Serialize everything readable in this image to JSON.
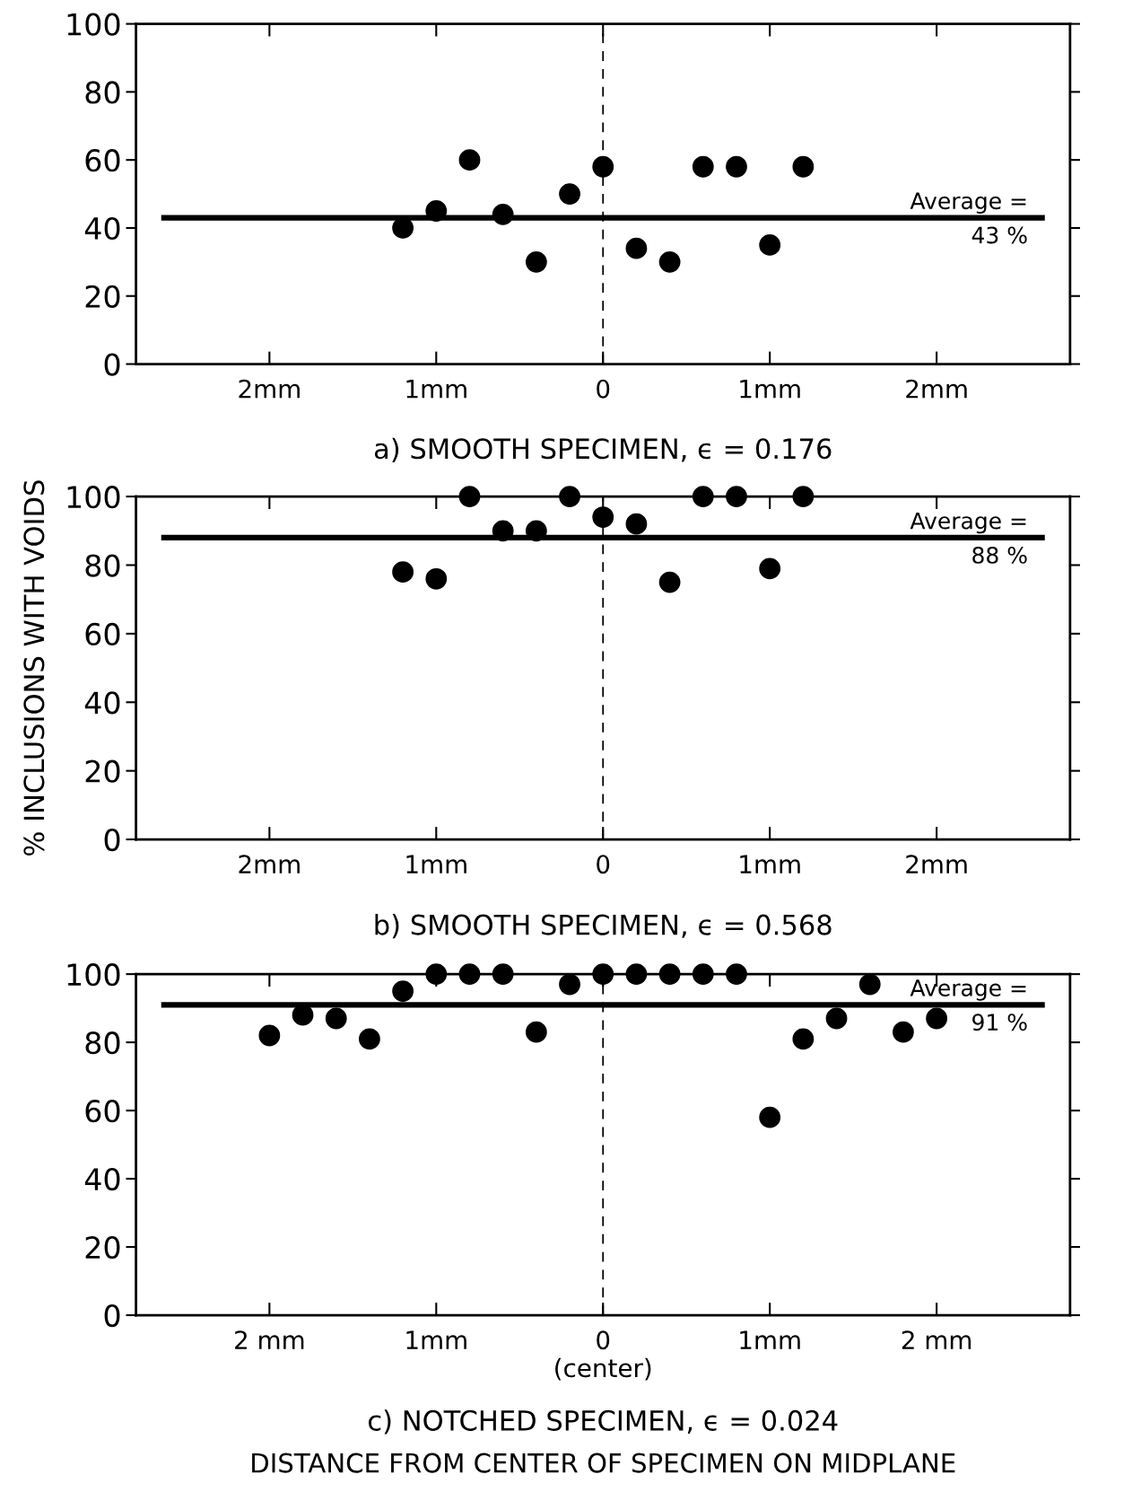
{
  "chart_data": [
    {
      "type": "scatter",
      "title": "a) SMOOTH SPECIMEN, ϵ = 0.176",
      "x": [
        -1.2,
        -1.0,
        -0.8,
        -0.6,
        -0.4,
        -0.2,
        0,
        0.2,
        0.4,
        0.6,
        0.8,
        1.0,
        1.2
      ],
      "series": [
        {
          "color": "#000000",
          "values": [
            40,
            45,
            60,
            44,
            30,
            50,
            58,
            34,
            30,
            58,
            58,
            35,
            58
          ]
        }
      ],
      "xlim": [
        -2.8,
        2.8
      ],
      "xticks": [
        {
          "value": -2,
          "label": "2mm"
        },
        {
          "value": -1,
          "label": "1mm"
        },
        0,
        {
          "value": 1,
          "label": "1mm"
        },
        {
          "value": 2,
          "label": "2mm"
        }
      ],
      "ylim": [
        0,
        100
      ],
      "yticks": [
        0,
        20,
        40,
        60,
        80,
        100
      ],
      "marker": "circle",
      "grid": false,
      "legend": false,
      "ref_lines": [
        {
          "axis": "y",
          "value": 43,
          "label": "Average =\n43 %",
          "color": "#000000",
          "line_style": "solid"
        },
        {
          "axis": "x",
          "value": 0,
          "color": "#000000",
          "line_style": "dashed"
        }
      ]
    },
    {
      "type": "scatter",
      "title": "b) SMOOTH SPECIMEN, ϵ = 0.568",
      "ylabel": "% INCLUSIONS WITH VOIDS",
      "x": [
        -1.2,
        -1.0,
        -0.8,
        -0.6,
        -0.4,
        -0.2,
        0,
        0.2,
        0.4,
        0.6,
        0.8,
        1.0,
        1.2
      ],
      "series": [
        {
          "color": "#000000",
          "values": [
            78,
            76,
            100,
            90,
            90,
            100,
            94,
            92,
            75,
            100,
            100,
            79,
            100
          ]
        }
      ],
      "xlim": [
        -2.8,
        2.8
      ],
      "xticks": [
        {
          "value": -2,
          "label": "2mm"
        },
        {
          "value": -1,
          "label": "1mm"
        },
        0,
        {
          "value": 1,
          "label": "1mm"
        },
        {
          "value": 2,
          "label": "2mm"
        }
      ],
      "ylim": [
        0,
        100
      ],
      "yticks": [
        0,
        20,
        40,
        60,
        80,
        100
      ],
      "marker": "circle",
      "grid": false,
      "legend": false,
      "ref_lines": [
        {
          "axis": "y",
          "value": 88,
          "label": "Average =\n88 %",
          "color": "#000000",
          "line_style": "solid"
        },
        {
          "axis": "x",
          "value": 0,
          "color": "#000000",
          "line_style": "dashed"
        }
      ]
    },
    {
      "type": "scatter",
      "title": "c) NOTCHED SPECIMEN, ϵ = 0.024",
      "x": [
        -2.0,
        -1.8,
        -1.6,
        -1.4,
        -1.2,
        -1.0,
        -0.8,
        -0.6,
        -0.4,
        -0.2,
        0,
        0.2,
        0.4,
        0.6,
        0.8,
        1.0,
        1.2,
        1.4,
        1.6,
        1.8,
        2.0
      ],
      "series": [
        {
          "color": "#000000",
          "values": [
            82,
            88,
            87,
            81,
            95,
            100,
            100,
            100,
            83,
            97,
            100,
            100,
            100,
            100,
            100,
            58,
            81,
            87,
            97,
            83,
            87
          ]
        }
      ],
      "xlim": [
        -2.8,
        2.8
      ],
      "xticks": [
        {
          "value": -2,
          "label": "2 mm"
        },
        {
          "value": -1,
          "label": "1mm"
        },
        {
          "value": 0,
          "label": "0\n(center)"
        },
        {
          "value": 1,
          "label": "1mm"
        },
        {
          "value": 2,
          "label": "2 mm"
        }
      ],
      "ylim": [
        0,
        100
      ],
      "yticks": [
        0,
        20,
        40,
        60,
        80,
        100
      ],
      "marker": "circle",
      "grid": false,
      "legend": false,
      "ref_lines": [
        {
          "axis": "y",
          "value": 91,
          "label": "Average =\n91 %",
          "color": "#000000",
          "line_style": "solid"
        },
        {
          "axis": "x",
          "value": 0,
          "color": "#000000",
          "line_style": "dashed"
        }
      ],
      "annotations": [
        "DISTANCE FROM CENTER OF SPECIMEN ON MIDPLANE"
      ]
    }
  ]
}
